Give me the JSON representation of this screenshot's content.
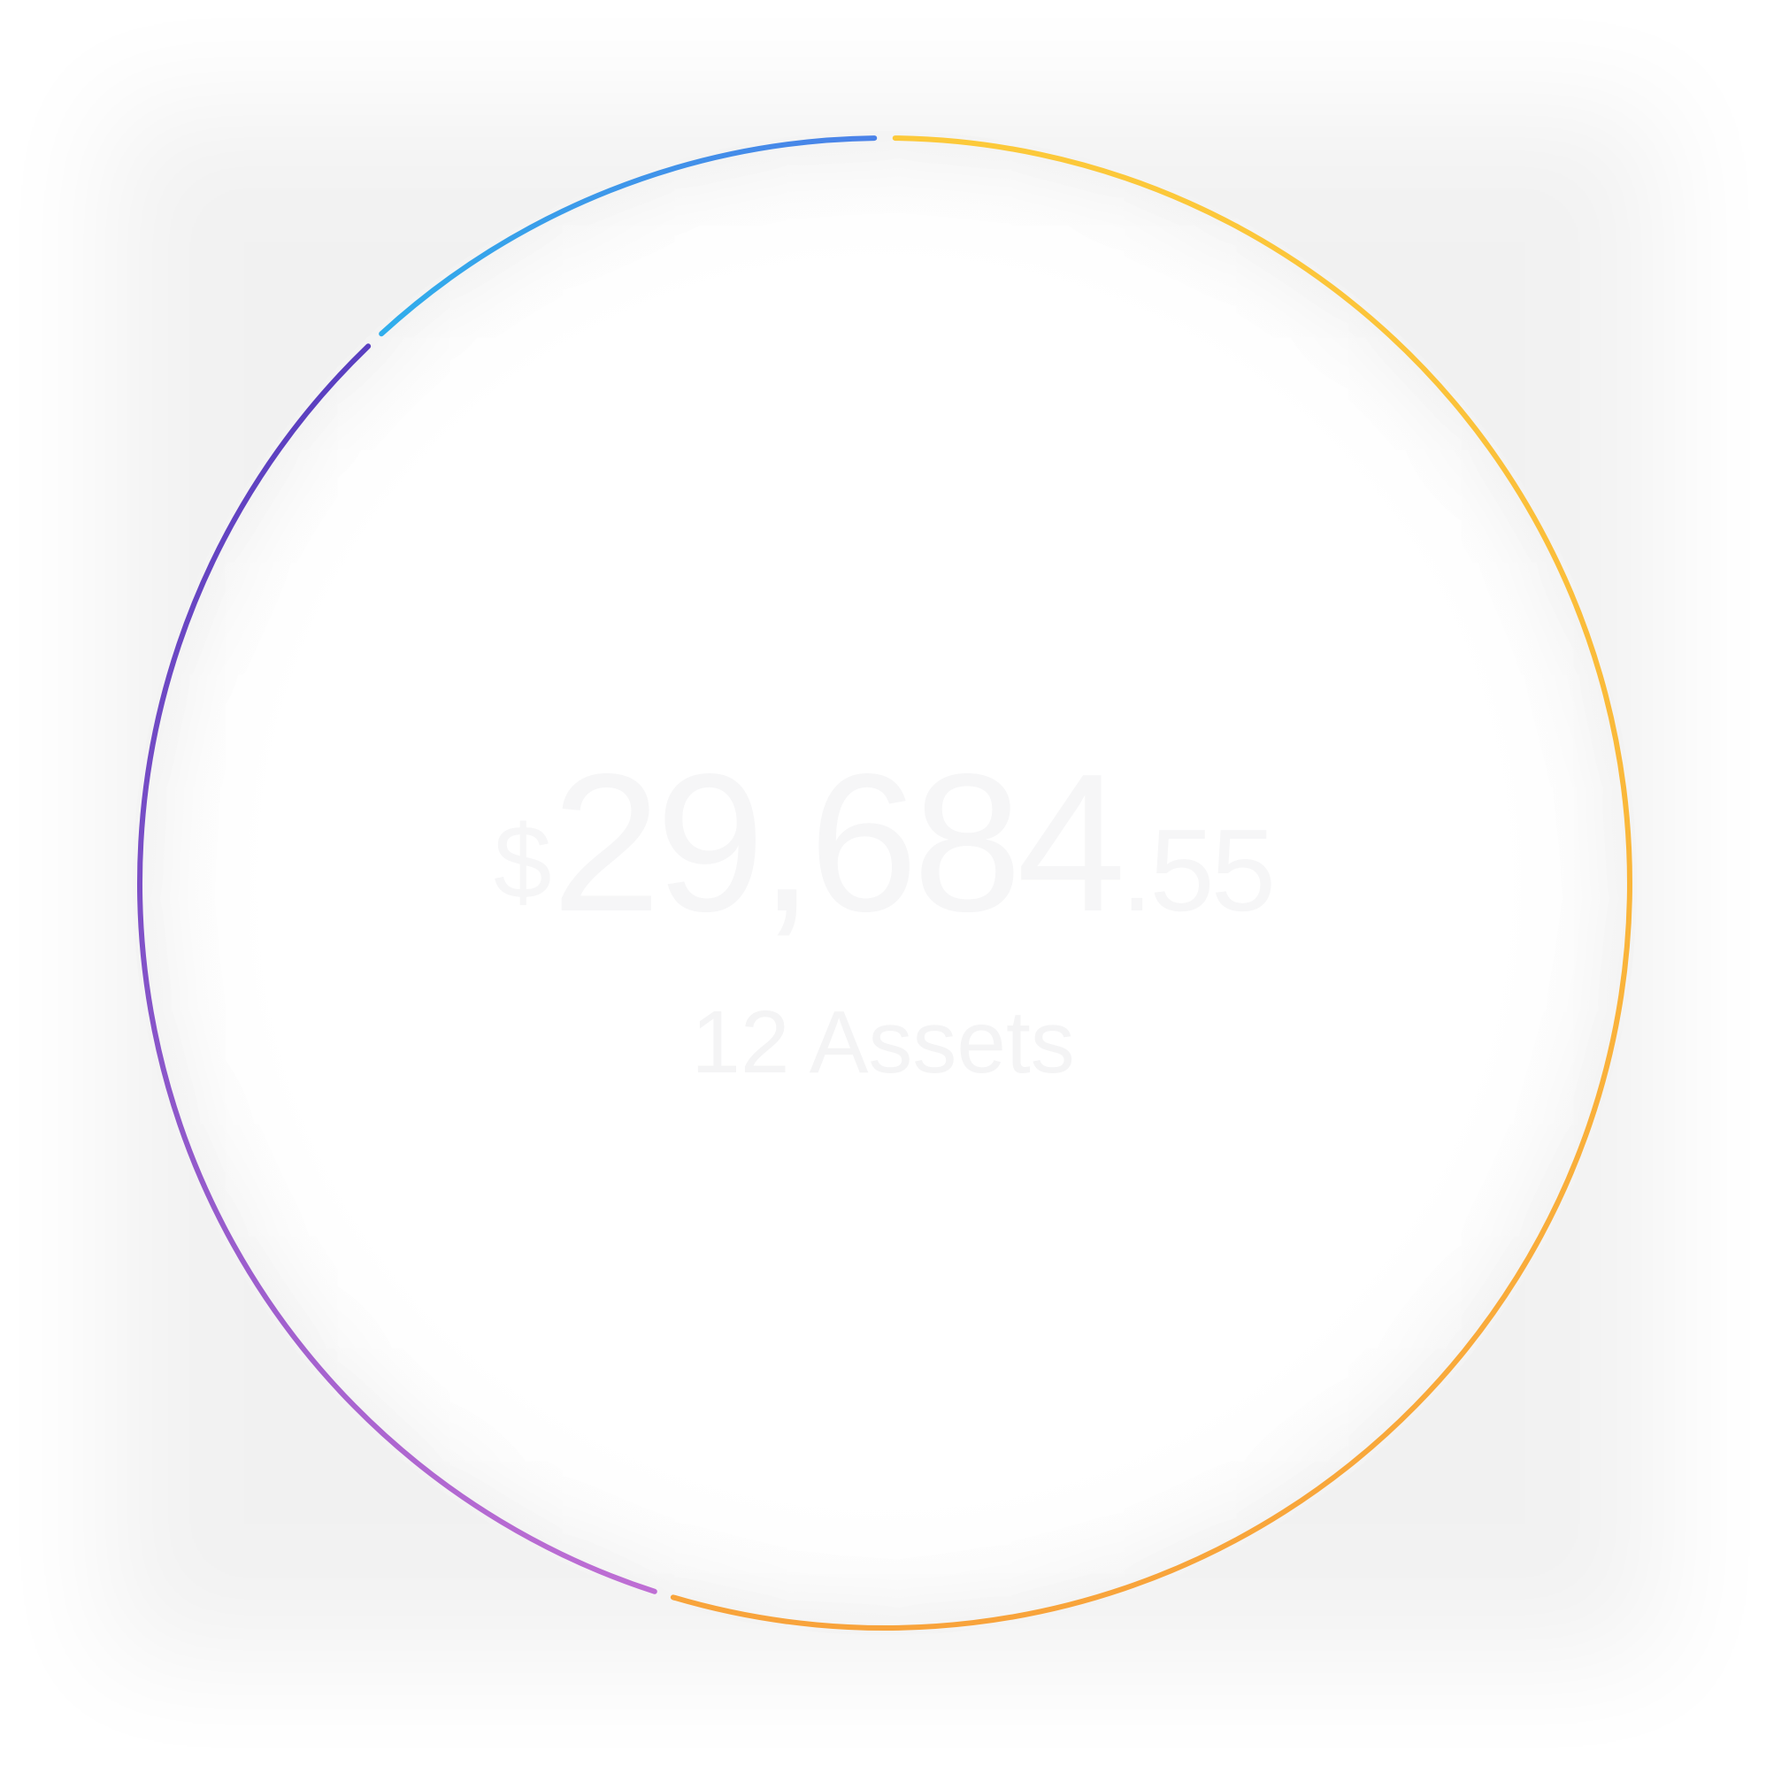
{
  "portfolio": {
    "currency_symbol": "$",
    "whole": "29,684",
    "fraction": ".55",
    "asset_count_label": "12 Assets"
  },
  "ring": {
    "segments": [
      {
        "name": "segment-orange",
        "start_deg": 0.8,
        "end_deg": 196.5,
        "color_start": "#fcc93a",
        "color_end": "#f8a33b"
      },
      {
        "name": "segment-purple",
        "start_deg": 198.0,
        "end_deg": 316.1,
        "color_start": "#c06fd4",
        "color_end": "#5a3fc0"
      },
      {
        "name": "segment-blue",
        "start_deg": 317.5,
        "end_deg": 359.2,
        "color_start": "#2db3ec",
        "color_end": "#4a82e8"
      }
    ]
  }
}
